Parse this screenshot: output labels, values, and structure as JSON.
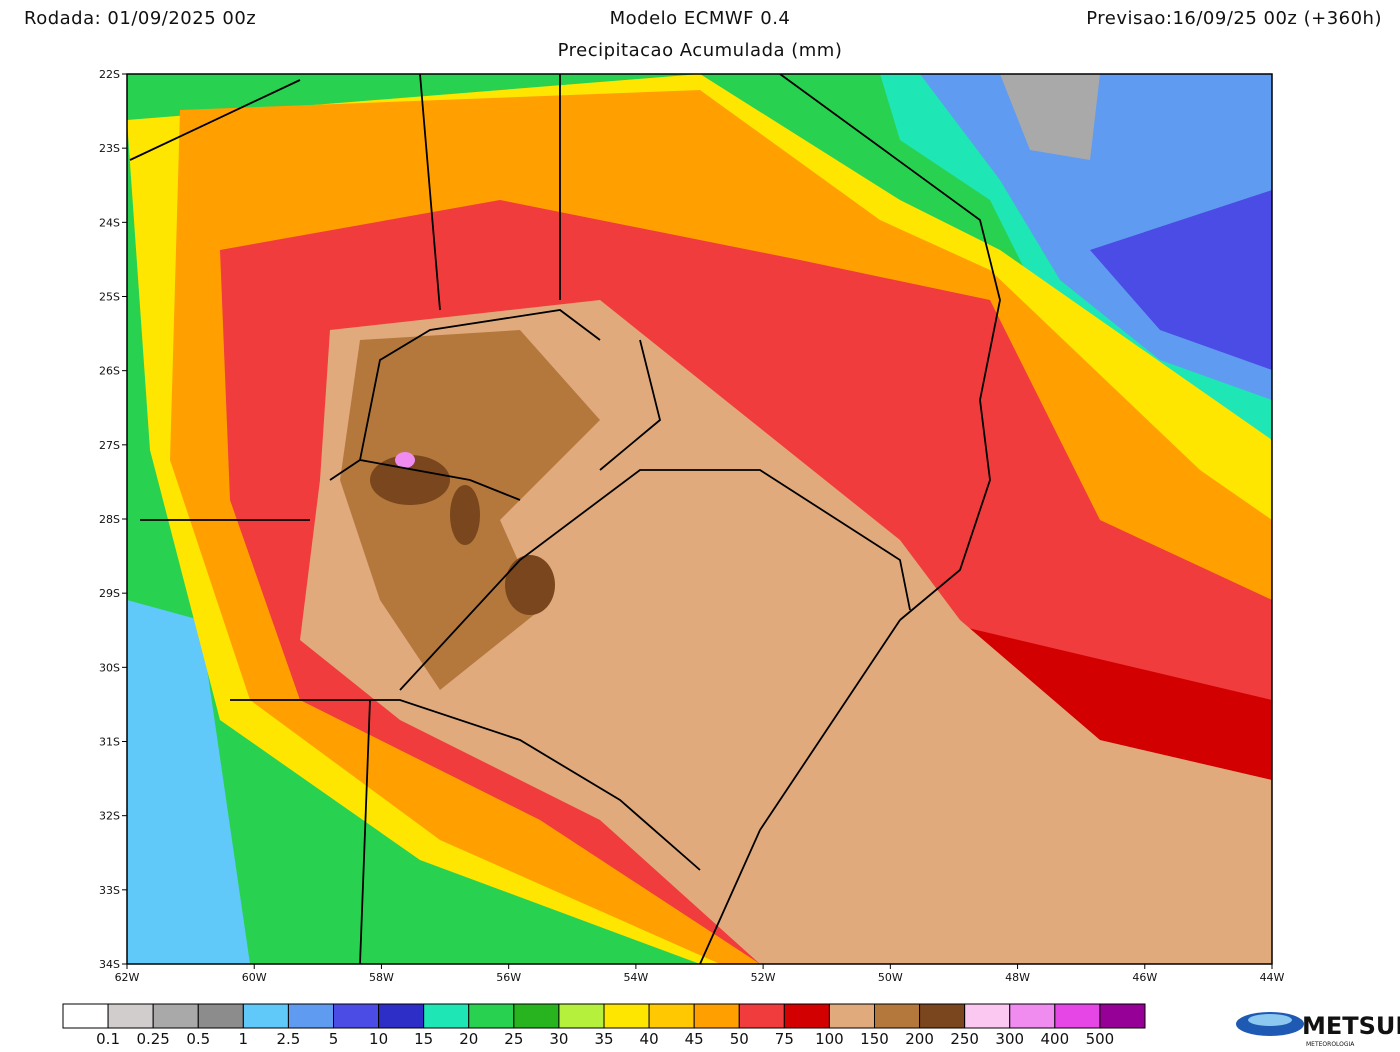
{
  "header": {
    "run": "Rodada: 01/09/2025 00z",
    "model": "Modelo ECMWF 0.4",
    "forecast": "Previsao:16/09/25 00z (+360h)",
    "subtitle": "Precipitacao Acumulada (mm)"
  },
  "map": {
    "lat_labels": [
      "22S",
      "23S",
      "24S",
      "25S",
      "26S",
      "27S",
      "28S",
      "29S",
      "30S",
      "31S",
      "32S",
      "33S",
      "34S"
    ],
    "lon_labels": [
      "62W",
      "60W",
      "58W",
      "56W",
      "54W",
      "52W",
      "50W",
      "48W",
      "46W",
      "44W"
    ]
  },
  "legend": {
    "colors": [
      "#ffffff",
      "#d2cdcd",
      "#a9a9a9",
      "#8c8c8c",
      "#61c8fa",
      "#5f9bf0",
      "#4b4be6",
      "#2d2dc8",
      "#1ee6b4",
      "#28d250",
      "#28b41e",
      "#b4f03c",
      "#ffe600",
      "#ffc800",
      "#ffa000",
      "#f03c3c",
      "#d20000",
      "#e1aa7d",
      "#b4783c",
      "#7a461e",
      "#fac8f0",
      "#f08cf0",
      "#e646e6",
      "#960096"
    ],
    "labels": [
      "0.1",
      "0.25",
      "0.5",
      "1",
      "2.5",
      "5",
      "10",
      "15",
      "20",
      "25",
      "30",
      "35",
      "40",
      "45",
      "50",
      "75",
      "100",
      "150",
      "200",
      "250",
      "300",
      "400",
      "500"
    ]
  },
  "logo": {
    "name": "METSUL",
    "tagline": "METEOROLOGIA"
  }
}
